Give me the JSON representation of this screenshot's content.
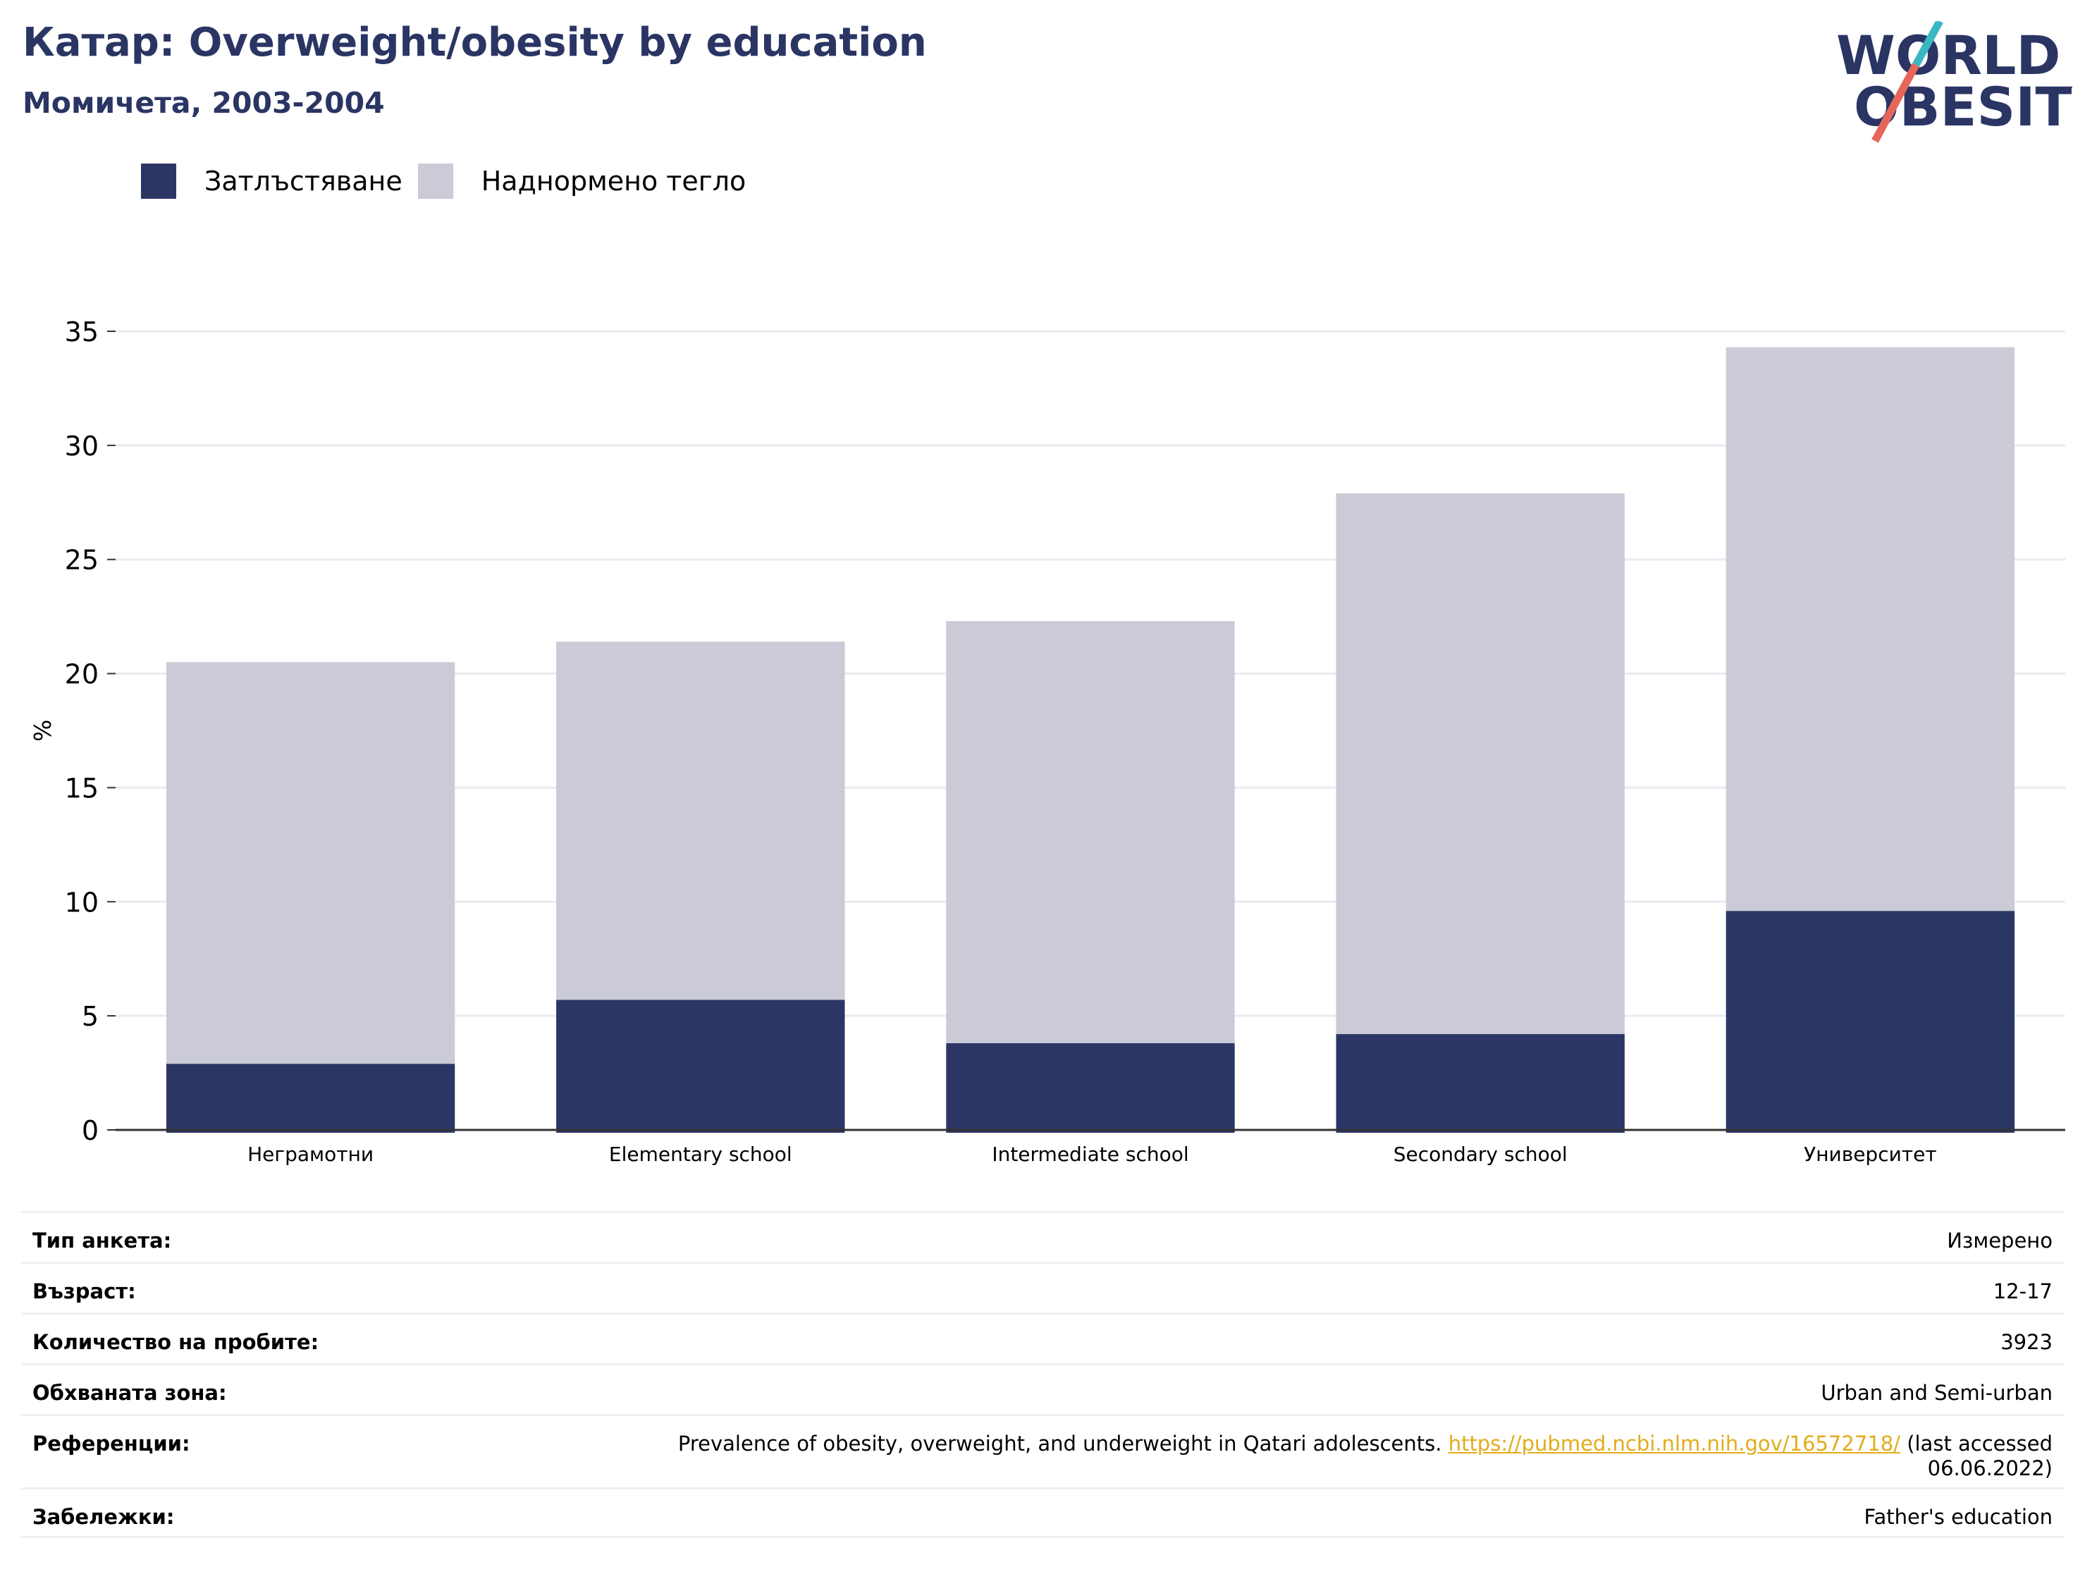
{
  "header": {
    "title": "Катар: Overweight/obesity by education",
    "subtitle": "Момичета, 2003-2004"
  },
  "logo": {
    "line1": "WORLD",
    "line2": "OBESITY",
    "colors": {
      "text": "#2a3564",
      "slash_top": "#3bb7c2",
      "slash_bottom": "#e7665a"
    }
  },
  "legend": [
    {
      "label": "Затлъстяване",
      "color": "#2b3664"
    },
    {
      "label": "Наднормено тегло",
      "color": "#cacbd7"
    }
  ],
  "chart_data": {
    "type": "bar",
    "stacked": true,
    "categories": [
      "Неграмотни",
      "Elementary school",
      "Intermediate school",
      "Secondary school",
      "Университет"
    ],
    "series": [
      {
        "name": "Затлъстяване",
        "color": "#2b3664",
        "values": [
          2.9,
          5.7,
          3.8,
          4.2,
          9.6
        ]
      },
      {
        "name": "Наднормено тегло",
        "color": "#cacbd7",
        "values": [
          17.6,
          15.7,
          18.5,
          23.7,
          24.7
        ]
      }
    ],
    "ylabel": "%",
    "xlabel": "",
    "ylim": [
      0,
      35
    ],
    "yticks": [
      0,
      5,
      10,
      15,
      20,
      25,
      30,
      35
    ],
    "grid": true
  },
  "meta": {
    "rows": [
      {
        "label": "Тип анкета:",
        "value": "Измерено"
      },
      {
        "label": "Възраст:",
        "value": "12-17"
      },
      {
        "label": "Количество на пробите:",
        "value": "3923"
      },
      {
        "label": "Обхваната зона:",
        "value": "Urban and Semi-urban"
      },
      {
        "label": "Референции:",
        "value": "Prevalence of obesity, overweight, and underweight in Qatari adolescents.",
        "link": "https://pubmed.ncbi.nlm.nih.gov/16572718/",
        "value_after": "(last accessed 06.06.2022)"
      },
      {
        "label": "Забележки:",
        "value": "Father's education"
      }
    ]
  }
}
